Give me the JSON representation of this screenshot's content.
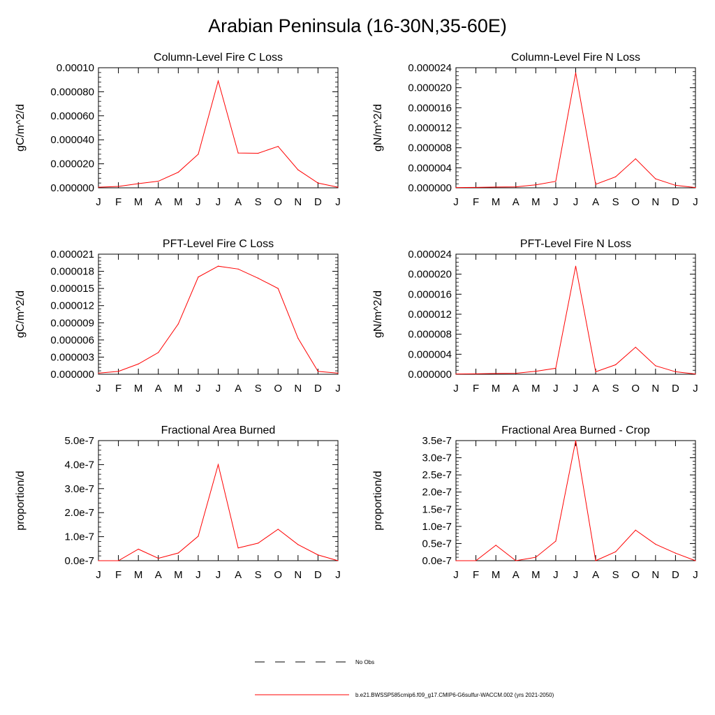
{
  "title": "Arabian Peninsula (16-30N,35-60E)",
  "colors": {
    "model": "#ff0000",
    "obs": "#000000",
    "axis": "#000000"
  },
  "legend": {
    "entries": [
      {
        "label": "No Obs",
        "style": "dashed",
        "color": "#000000"
      },
      {
        "label": "b.e21.BWSSP585cmip6.f09_g17.CMIP6-G6sulfur-WACCM.002 (yrs 2021-2050)",
        "style": "solid",
        "color": "#ff0000"
      }
    ]
  },
  "chart_data": [
    {
      "type": "line",
      "title": "Column-Level Fire C Loss",
      "ylabel": "gC/m^2/d",
      "categories": [
        "J",
        "F",
        "M",
        "A",
        "M",
        "J",
        "J",
        "A",
        "S",
        "O",
        "N",
        "D",
        "J"
      ],
      "ylim": [
        0,
        0.0001
      ],
      "yticks": [
        "0.000000",
        "0.000020",
        "0.000040",
        "0.000060",
        "0.000080",
        "0.00010"
      ],
      "series": [
        {
          "values": [
            5e-07,
            1.2e-06,
            3.5e-06,
            5.5e-06,
            1.3e-05,
            2.8e-05,
            8.9e-05,
            2.9e-05,
            2.88e-05,
            3.45e-05,
            1.5e-05,
            4e-06,
            5e-07
          ]
        }
      ]
    },
    {
      "type": "line",
      "title": "Column-Level Fire N Loss",
      "ylabel": "gN/m^2/d",
      "categories": [
        "J",
        "F",
        "M",
        "A",
        "M",
        "J",
        "J",
        "A",
        "S",
        "O",
        "N",
        "D",
        "J"
      ],
      "ylim": [
        0,
        2.4e-05
      ],
      "yticks": [
        "0.000000",
        "0.000004",
        "0.000008",
        "0.000012",
        "0.000016",
        "0.000020",
        "0.000024"
      ],
      "series": [
        {
          "values": [
            5e-08,
            8e-08,
            1.5e-07,
            2e-07,
            6e-07,
            1.3e-06,
            2.3e-05,
            7e-07,
            2.2e-06,
            5.8e-06,
            1.8e-06,
            5e-07,
            5e-08
          ]
        }
      ]
    },
    {
      "type": "line",
      "title": "PFT-Level Fire C Loss",
      "ylabel": "gC/m^2/d",
      "categories": [
        "J",
        "F",
        "M",
        "A",
        "M",
        "J",
        "J",
        "A",
        "S",
        "O",
        "N",
        "D",
        "J"
      ],
      "ylim": [
        0,
        2.1e-05
      ],
      "yticks": [
        "0.000000",
        "0.000003",
        "0.000006",
        "0.000009",
        "0.000012",
        "0.000015",
        "0.000018",
        "0.000021"
      ],
      "series": [
        {
          "values": [
            2e-07,
            5e-07,
            1.8e-06,
            3.8e-06,
            8.8e-06,
            1.7e-05,
            1.89e-05,
            1.84e-05,
            1.68e-05,
            1.5e-05,
            6.3e-06,
            5e-07,
            2e-07
          ]
        }
      ]
    },
    {
      "type": "line",
      "title": "PFT-Level Fire N Loss",
      "ylabel": "gN/m^2/d",
      "categories": [
        "J",
        "F",
        "M",
        "A",
        "M",
        "J",
        "J",
        "A",
        "S",
        "O",
        "N",
        "D",
        "J"
      ],
      "ylim": [
        0,
        2.4e-05
      ],
      "yticks": [
        "0.000000",
        "0.000004",
        "0.000008",
        "0.000012",
        "0.000016",
        "0.000020",
        "0.000024"
      ],
      "series": [
        {
          "values": [
            5e-08,
            8e-08,
            1.5e-07,
            2e-07,
            6e-07,
            1.2e-06,
            2.16e-05,
            5e-07,
            1.9e-06,
            5.4e-06,
            1.7e-06,
            5e-07,
            5e-08
          ]
        }
      ]
    },
    {
      "type": "line",
      "title": "Fractional Area Burned",
      "ylabel": "proportion/d",
      "categories": [
        "J",
        "F",
        "M",
        "A",
        "M",
        "J",
        "J",
        "A",
        "S",
        "O",
        "N",
        "D",
        "J"
      ],
      "ylim": [
        0,
        5e-07
      ],
      "yticks": [
        "0.0e-7",
        "1.0e-7",
        "2.0e-7",
        "3.0e-7",
        "4.0e-7",
        "5.0e-7"
      ],
      "series": [
        {
          "values": [
            0.0,
            0.0,
            4.8e-08,
            1e-08,
            3.2e-08,
            1.02e-07,
            4e-07,
            5.3e-08,
            7.3e-08,
            1.31e-07,
            6.7e-08,
            2.4e-08,
            0.0
          ]
        }
      ]
    },
    {
      "type": "line",
      "title": "Fractional Area Burned - Crop",
      "ylabel": "proportion/d",
      "categories": [
        "J",
        "F",
        "M",
        "A",
        "M",
        "J",
        "J",
        "A",
        "S",
        "O",
        "N",
        "D",
        "J"
      ],
      "ylim": [
        0,
        3.5e-07
      ],
      "yticks": [
        "0.0e-7",
        "0.5e-7",
        "1.0e-7",
        "1.5e-7",
        "2.0e-7",
        "2.5e-7",
        "3.0e-7",
        "3.5e-7"
      ],
      "series": [
        {
          "values": [
            0.0,
            0.0,
            4.5e-08,
            0.0,
            1e-08,
            5.7e-08,
            3.5e-07,
            0.0,
            2.6e-08,
            8.9e-08,
            4.8e-08,
            2.2e-08,
            0.0
          ]
        }
      ]
    }
  ]
}
